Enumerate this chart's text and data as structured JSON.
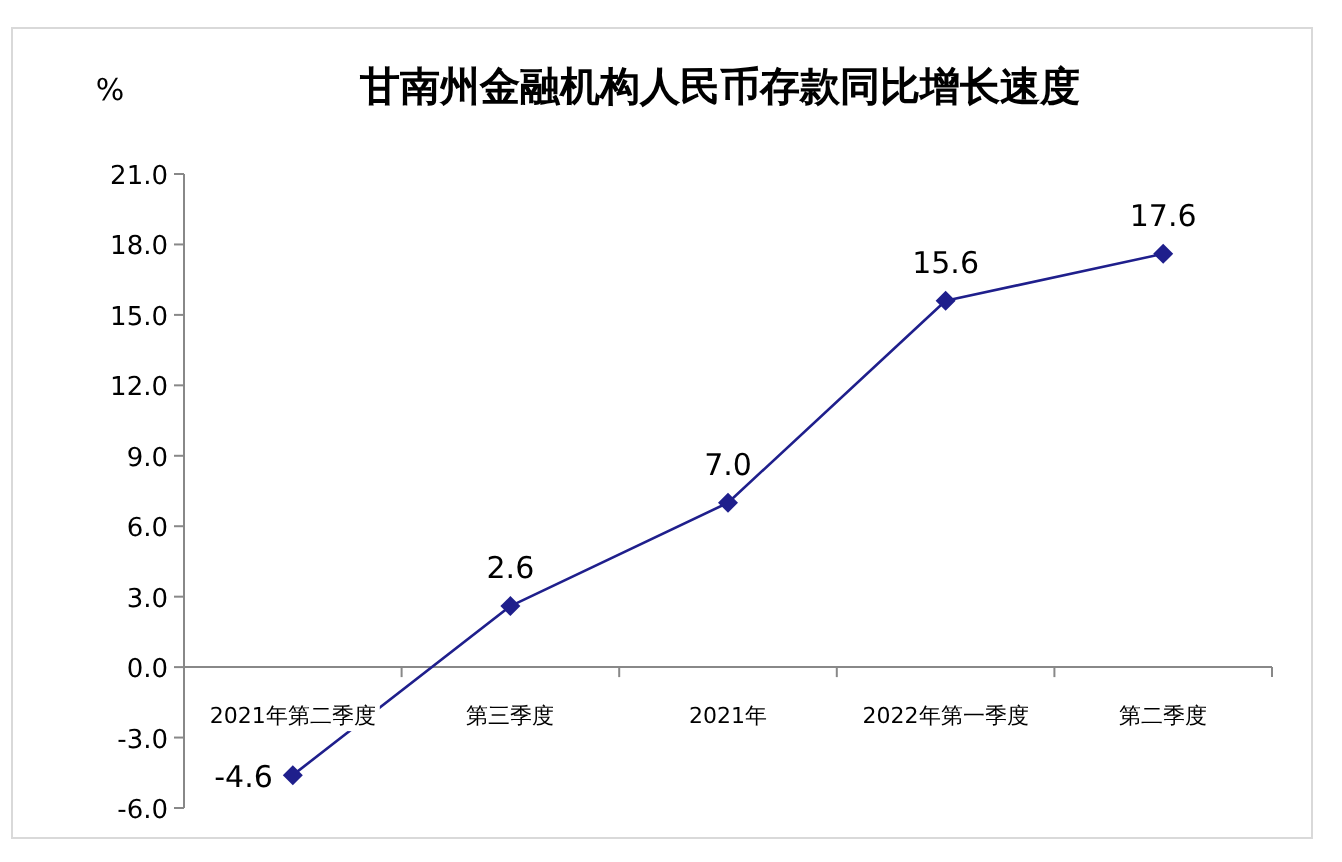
{
  "chart_data": {
    "type": "line",
    "title": "甘南州金融机构人民币存款同比增长速度",
    "ylabel": "%",
    "categories": [
      "2021年第二季度",
      "第三季度",
      "2021年",
      "2022年第一季度",
      "第二季度"
    ],
    "series": [
      {
        "color": "#1f1f8c",
        "values": [
          -4.6,
          2.6,
          7.0,
          15.6,
          17.6
        ]
      }
    ],
    "ylim": [
      -6,
      21
    ],
    "yticks": [
      {
        "value": -6,
        "label": "-6.0"
      },
      {
        "value": -3,
        "label": "-3.0"
      },
      {
        "value": 0,
        "label": "0.0"
      },
      {
        "value": 3,
        "label": "3.0"
      },
      {
        "value": 6,
        "label": "6.0"
      },
      {
        "value": 9,
        "label": "9.0"
      },
      {
        "value": 12,
        "label": "12.0"
      },
      {
        "value": 15,
        "label": "15.0"
      },
      {
        "value": 18,
        "label": "18.0"
      },
      {
        "value": 21,
        "label": "21.0"
      }
    ],
    "value_labels": [
      "-4.6",
      "2.6",
      "7.0",
      "15.6",
      "17.6"
    ],
    "marker": "diamond"
  }
}
